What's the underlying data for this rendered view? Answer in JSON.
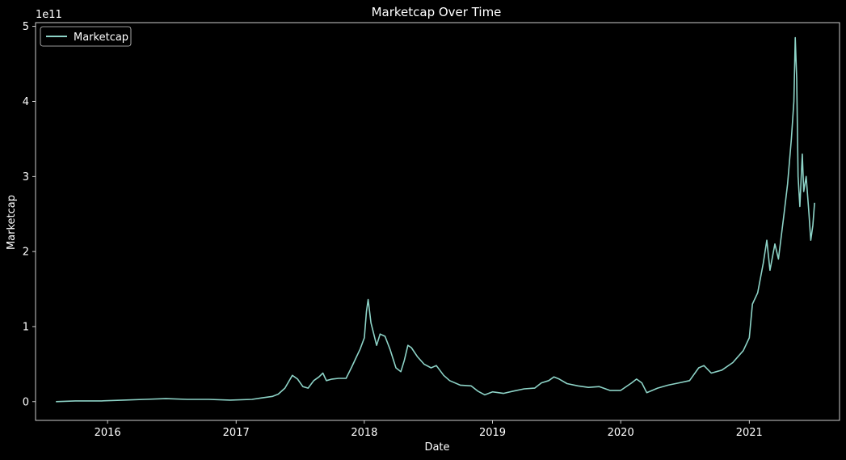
{
  "chart_data": {
    "type": "line",
    "title": "Marketcap Over Time",
    "xlabel": "Date",
    "ylabel": "Marketcap",
    "y_offset_label": "1e11",
    "x_ticks": [
      "2016",
      "2017",
      "2018",
      "2019",
      "2020",
      "2021"
    ],
    "y_ticks": [
      "0",
      "1",
      "2",
      "3",
      "4",
      "5"
    ],
    "xlim": [
      "2015-06-10",
      "2021-09-15"
    ],
    "ylim": [
      -25000000000.0,
      505000000000.0
    ],
    "grid": false,
    "legend_position": "top-left",
    "series": [
      {
        "name": "Marketcap",
        "color": "#8dd3c7",
        "points": [
          [
            "2015-08-07",
            0.0
          ],
          [
            "2015-10-01",
            1000000000.0
          ],
          [
            "2015-12-15",
            1000000000.0
          ],
          [
            "2016-02-15",
            2000000000.0
          ],
          [
            "2016-04-15",
            3000000000.0
          ],
          [
            "2016-06-15",
            4000000000.0
          ],
          [
            "2016-08-15",
            3000000000.0
          ],
          [
            "2016-10-15",
            3000000000.0
          ],
          [
            "2016-12-15",
            2000000000.0
          ],
          [
            "2017-02-15",
            3000000000.0
          ],
          [
            "2017-03-15",
            5000000000.0
          ],
          [
            "2017-04-15",
            7000000000.0
          ],
          [
            "2017-05-01",
            10000000000.0
          ],
          [
            "2017-05-20",
            18000000000.0
          ],
          [
            "2017-06-10",
            35000000000.0
          ],
          [
            "2017-06-25",
            30000000000.0
          ],
          [
            "2017-07-10",
            20000000000.0
          ],
          [
            "2017-07-25",
            18000000000.0
          ],
          [
            "2017-08-10",
            28000000000.0
          ],
          [
            "2017-08-25",
            33000000000.0
          ],
          [
            "2017-09-05",
            38000000000.0
          ],
          [
            "2017-09-15",
            28000000000.0
          ],
          [
            "2017-10-01",
            30000000000.0
          ],
          [
            "2017-10-20",
            31000000000.0
          ],
          [
            "2017-11-10",
            31000000000.0
          ],
          [
            "2017-11-25",
            45000000000.0
          ],
          [
            "2017-12-10",
            60000000000.0
          ],
          [
            "2017-12-20",
            70000000000.0
          ],
          [
            "2018-01-01",
            85000000000.0
          ],
          [
            "2018-01-07",
            120000000000.0
          ],
          [
            "2018-01-12",
            136000000000.0
          ],
          [
            "2018-01-20",
            105000000000.0
          ],
          [
            "2018-02-05",
            75000000000.0
          ],
          [
            "2018-02-15",
            90000000000.0
          ],
          [
            "2018-03-01",
            87000000000.0
          ],
          [
            "2018-03-15",
            70000000000.0
          ],
          [
            "2018-04-01",
            45000000000.0
          ],
          [
            "2018-04-15",
            40000000000.0
          ],
          [
            "2018-04-25",
            55000000000.0
          ],
          [
            "2018-05-05",
            75000000000.0
          ],
          [
            "2018-05-15",
            72000000000.0
          ],
          [
            "2018-06-01",
            60000000000.0
          ],
          [
            "2018-06-20",
            50000000000.0
          ],
          [
            "2018-07-10",
            45000000000.0
          ],
          [
            "2018-07-25",
            48000000000.0
          ],
          [
            "2018-08-15",
            35000000000.0
          ],
          [
            "2018-09-01",
            28000000000.0
          ],
          [
            "2018-10-01",
            22000000000.0
          ],
          [
            "2018-11-01",
            21000000000.0
          ],
          [
            "2018-11-20",
            14000000000.0
          ],
          [
            "2018-12-10",
            9000000000.0
          ],
          [
            "2019-01-01",
            13000000000.0
          ],
          [
            "2019-02-01",
            11000000000.0
          ],
          [
            "2019-03-01",
            14000000000.0
          ],
          [
            "2019-04-01",
            17000000000.0
          ],
          [
            "2019-05-01",
            18000000000.0
          ],
          [
            "2019-05-20",
            25000000000.0
          ],
          [
            "2019-06-10",
            28000000000.0
          ],
          [
            "2019-06-25",
            33000000000.0
          ],
          [
            "2019-07-10",
            30000000000.0
          ],
          [
            "2019-08-01",
            24000000000.0
          ],
          [
            "2019-09-01",
            21000000000.0
          ],
          [
            "2019-10-01",
            19000000000.0
          ],
          [
            "2019-11-01",
            20000000000.0
          ],
          [
            "2019-12-01",
            15000000000.0
          ],
          [
            "2020-01-01",
            15000000000.0
          ],
          [
            "2020-02-01",
            25000000000.0
          ],
          [
            "2020-02-15",
            30000000000.0
          ],
          [
            "2020-03-01",
            25000000000.0
          ],
          [
            "2020-03-15",
            12000000000.0
          ],
          [
            "2020-04-15",
            18000000000.0
          ],
          [
            "2020-05-15",
            22000000000.0
          ],
          [
            "2020-06-15",
            25000000000.0
          ],
          [
            "2020-07-15",
            28000000000.0
          ],
          [
            "2020-08-10",
            45000000000.0
          ],
          [
            "2020-08-25",
            48000000000.0
          ],
          [
            "2020-09-15",
            38000000000.0
          ],
          [
            "2020-10-15",
            42000000000.0
          ],
          [
            "2020-11-15",
            52000000000.0
          ],
          [
            "2020-12-15",
            68000000000.0
          ],
          [
            "2021-01-01",
            85000000000.0
          ],
          [
            "2021-01-10",
            130000000000.0
          ],
          [
            "2021-01-25",
            145000000000.0
          ],
          [
            "2021-02-10",
            185000000000.0
          ],
          [
            "2021-02-20",
            215000000000.0
          ],
          [
            "2021-03-01",
            175000000000.0
          ],
          [
            "2021-03-15",
            210000000000.0
          ],
          [
            "2021-03-25",
            190000000000.0
          ],
          [
            "2021-04-10",
            250000000000.0
          ],
          [
            "2021-04-20",
            290000000000.0
          ],
          [
            "2021-05-01",
            350000000000.0
          ],
          [
            "2021-05-08",
            400000000000.0
          ],
          [
            "2021-05-12",
            485000000000.0
          ],
          [
            "2021-05-16",
            430000000000.0
          ],
          [
            "2021-05-20",
            300000000000.0
          ],
          [
            "2021-05-25",
            260000000000.0
          ],
          [
            "2021-06-01",
            330000000000.0
          ],
          [
            "2021-06-05",
            280000000000.0
          ],
          [
            "2021-06-12",
            300000000000.0
          ],
          [
            "2021-06-20",
            250000000000.0
          ],
          [
            "2021-06-25",
            215000000000.0
          ],
          [
            "2021-07-01",
            235000000000.0
          ],
          [
            "2021-07-06",
            265000000000.0
          ]
        ]
      }
    ]
  }
}
